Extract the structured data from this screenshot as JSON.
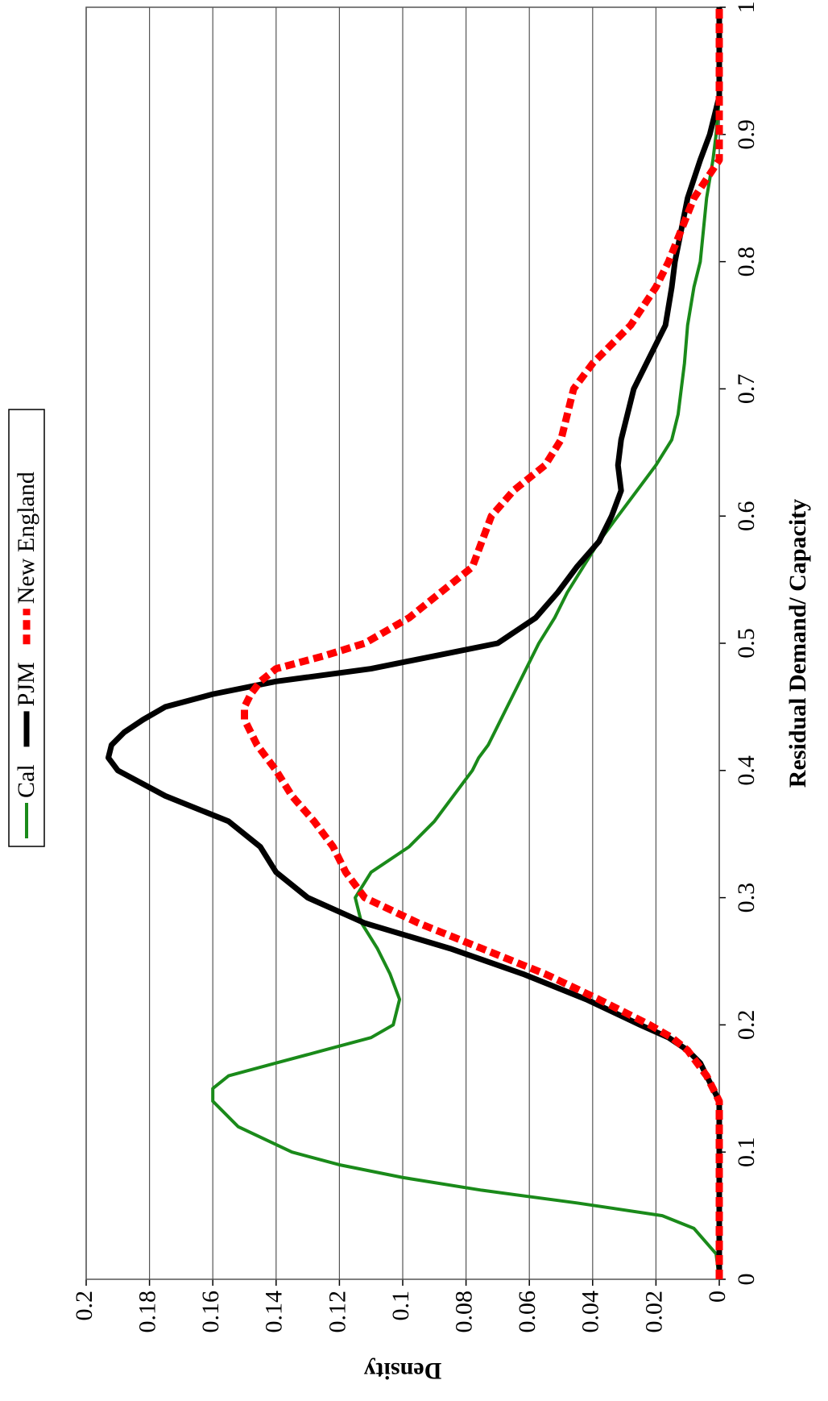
{
  "chart_data": {
    "type": "line",
    "x_label": "Residual Demand/ Capacity",
    "y_label": "Density",
    "x": [
      0,
      0.02,
      0.04,
      0.05,
      0.06,
      0.07,
      0.08,
      0.09,
      0.1,
      0.12,
      0.14,
      0.15,
      0.16,
      0.17,
      0.18,
      0.19,
      0.2,
      0.22,
      0.24,
      0.26,
      0.28,
      0.3,
      0.32,
      0.34,
      0.36,
      0.38,
      0.4,
      0.41,
      0.42,
      0.43,
      0.44,
      0.45,
      0.46,
      0.47,
      0.48,
      0.49,
      0.5,
      0.52,
      0.54,
      0.56,
      0.58,
      0.6,
      0.62,
      0.64,
      0.66,
      0.68,
      0.7,
      0.72,
      0.75,
      0.78,
      0.8,
      0.85,
      0.88,
      0.9,
      0.93,
      0.95,
      1
    ],
    "series": [
      {
        "name": "Cal",
        "color": "#1a8a1a",
        "width": 4,
        "dashed": false,
        "values": [
          0,
          0.001,
          0.008,
          0.018,
          0.045,
          0.075,
          0.1,
          0.12,
          0.135,
          0.152,
          0.16,
          0.16,
          0.155,
          0.14,
          0.125,
          0.11,
          0.103,
          0.101,
          0.104,
          0.108,
          0.113,
          0.115,
          0.11,
          0.098,
          0.09,
          0.084,
          0.078,
          0.076,
          0.073,
          0.071,
          0.069,
          0.067,
          0.065,
          0.063,
          0.061,
          0.059,
          0.057,
          0.052,
          0.048,
          0.043,
          0.038,
          0.032,
          0.026,
          0.02,
          0.015,
          0.013,
          0.012,
          0.011,
          0.01,
          0.008,
          0.006,
          0.004,
          0.002,
          0.001,
          0,
          0,
          0
        ]
      },
      {
        "name": "PJM",
        "color": "#000000",
        "width": 7,
        "dashed": false,
        "values": [
          0,
          0,
          0,
          0,
          0,
          0,
          0,
          0,
          0,
          0,
          0,
          0.002,
          0.004,
          0.006,
          0.01,
          0.016,
          0.025,
          0.042,
          0.062,
          0.085,
          0.112,
          0.13,
          0.14,
          0.145,
          0.155,
          0.175,
          0.19,
          0.193,
          0.192,
          0.188,
          0.182,
          0.175,
          0.16,
          0.14,
          0.11,
          0.09,
          0.07,
          0.058,
          0.051,
          0.045,
          0.038,
          0.034,
          0.031,
          0.032,
          0.031,
          0.029,
          0.027,
          0.023,
          0.017,
          0.015,
          0.014,
          0.01,
          0.006,
          0.003,
          0,
          0,
          0
        ]
      },
      {
        "name": "New England",
        "color": "#ff0000",
        "width": 9,
        "dashed": true,
        "values": [
          0,
          0,
          0,
          0,
          0,
          0,
          0,
          0,
          0,
          0,
          0,
          0.002,
          0.004,
          0.007,
          0.01,
          0.015,
          0.022,
          0.038,
          0.055,
          0.075,
          0.095,
          0.112,
          0.118,
          0.122,
          0.128,
          0.135,
          0.14,
          0.143,
          0.146,
          0.148,
          0.15,
          0.15,
          0.148,
          0.145,
          0.14,
          0.125,
          0.112,
          0.098,
          0.088,
          0.078,
          0.075,
          0.072,
          0.065,
          0.055,
          0.05,
          0.048,
          0.046,
          0.04,
          0.028,
          0.02,
          0.016,
          0.008,
          0,
          0,
          0,
          0,
          0
        ]
      }
    ],
    "xlim": [
      0,
      1
    ],
    "xticks": [
      0,
      0.1,
      0.2,
      0.3,
      0.4,
      0.5,
      0.6,
      0.7,
      0.8,
      0.9,
      1
    ],
    "ylim": [
      0,
      0.2
    ],
    "yticks": [
      0,
      0.02,
      0.04,
      0.06,
      0.08,
      0.1,
      0.12,
      0.14,
      0.16,
      0.18,
      0.2
    ],
    "grid": true,
    "legend": "top"
  }
}
